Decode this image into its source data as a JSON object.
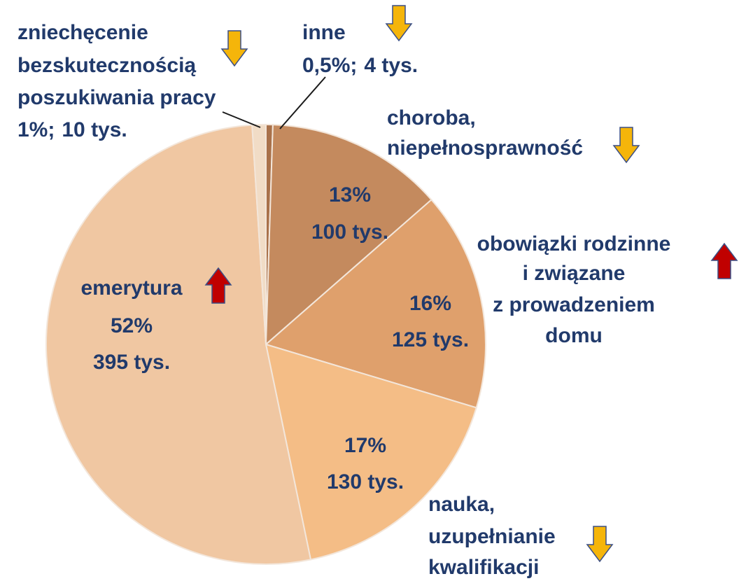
{
  "chart_data": {
    "type": "pie",
    "categories": [
      [
        "inne"
      ],
      [
        "choroba,",
        "niepełnosprawność"
      ],
      [
        "obowiązki rodzinne",
        "i związane",
        "z prowadzeniem",
        "domu"
      ],
      [
        "nauka,",
        "uzupełnianie",
        "kwalifikacji"
      ],
      [
        "emerytura"
      ],
      [
        "zniechęcenie",
        "bezskutecznością",
        "poszukiwania pracy"
      ]
    ],
    "values": [
      0.5,
      13,
      16,
      17,
      52,
      1
    ],
    "value_labels": [
      "0,5%;",
      "13%",
      "16%",
      "17%",
      "52%",
      "1%;"
    ],
    "count_labels": [
      "4 tys.",
      "100 tys.",
      "125 tys.",
      "130 tys.",
      "395 tys.",
      "10 tys."
    ],
    "colors": [
      "#a9714a",
      "#c48a5e",
      "#dfa06c",
      "#f4bd86",
      "#f0c7a2",
      "#f1dcc6"
    ],
    "trends": [
      "down",
      "down",
      "up",
      "down",
      "up",
      "down"
    ],
    "trend_colors": {
      "down": "#f5b50a",
      "up": "#c00000"
    }
  }
}
